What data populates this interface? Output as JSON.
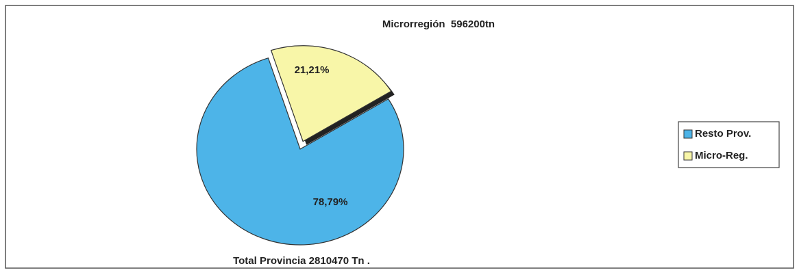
{
  "chart_data": {
    "type": "pie",
    "title": "Microrregión  596200tn",
    "annotation": "Total Provincia 2810470 Tn .",
    "categories": [
      "Resto Prov.",
      "Micro-Reg."
    ],
    "values": [
      78.79,
      21.21
    ],
    "value_labels": [
      "78,79%",
      "21,21%"
    ],
    "colors": [
      "#4db4e8",
      "#f8f6a8"
    ],
    "legend": "right"
  }
}
